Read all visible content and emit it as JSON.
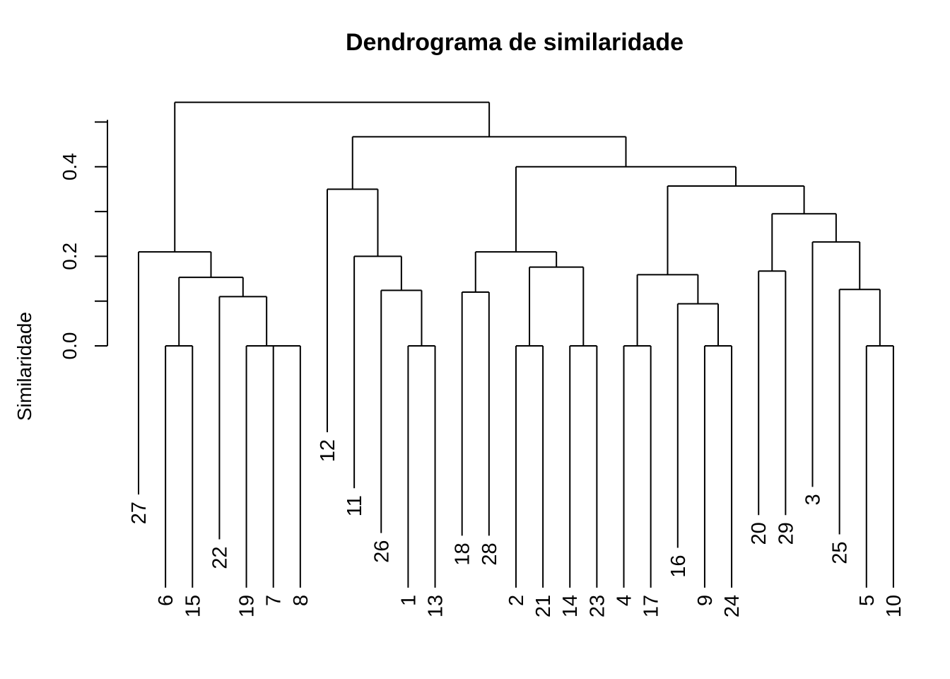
{
  "chart_data": {
    "type": "dendrogram",
    "title": "Dendrograma de similaridade",
    "ylabel": "Similaridade",
    "xlabel": "",
    "yticks": [
      0.0,
      0.1,
      0.2,
      0.3,
      0.4,
      0.5
    ],
    "ytick_labels": [
      "0.0",
      "",
      "0.2",
      "",
      "0.4",
      ""
    ],
    "leaf_order": [
      "27",
      "6",
      "15",
      "22",
      "19",
      "7",
      "8",
      "12",
      "11",
      "26",
      "1",
      "13",
      "18",
      "28",
      "2",
      "21",
      "14",
      "23",
      "4",
      "17",
      "16",
      "9",
      "24",
      "20",
      "29",
      "3",
      "25",
      "5",
      "10"
    ],
    "merges": [
      {
        "id": "A",
        "left": "6",
        "right": "15",
        "height": 0.0
      },
      {
        "id": "B",
        "left": "7",
        "right": "8",
        "height": 0.0
      },
      {
        "id": "C",
        "left": "19",
        "right": "B",
        "height": 0.0
      },
      {
        "id": "D",
        "left": "22",
        "right": "C",
        "height": 0.11
      },
      {
        "id": "E",
        "left": "A",
        "right": "D",
        "height": 0.153
      },
      {
        "id": "F",
        "left": "27",
        "right": "E",
        "height": 0.21
      },
      {
        "id": "G",
        "left": "1",
        "right": "13",
        "height": 0.0
      },
      {
        "id": "H",
        "left": "26",
        "right": "G",
        "height": 0.124
      },
      {
        "id": "I",
        "left": "11",
        "right": "H",
        "height": 0.2
      },
      {
        "id": "J",
        "left": "12",
        "right": "I",
        "height": 0.35
      },
      {
        "id": "K",
        "left": "18",
        "right": "28",
        "height": 0.12
      },
      {
        "id": "L",
        "left": "2",
        "right": "21",
        "height": 0.0
      },
      {
        "id": "M",
        "left": "14",
        "right": "23",
        "height": 0.0
      },
      {
        "id": "N",
        "left": "L",
        "right": "M",
        "height": 0.176
      },
      {
        "id": "O",
        "left": "K",
        "right": "N",
        "height": 0.21
      },
      {
        "id": "P",
        "left": "4",
        "right": "17",
        "height": 0.0
      },
      {
        "id": "Q",
        "left": "9",
        "right": "24",
        "height": 0.0
      },
      {
        "id": "R",
        "left": "16",
        "right": "Q",
        "height": 0.094
      },
      {
        "id": "S",
        "left": "P",
        "right": "R",
        "height": 0.159
      },
      {
        "id": "T",
        "left": "20",
        "right": "29",
        "height": 0.167
      },
      {
        "id": "U",
        "left": "5",
        "right": "10",
        "height": 0.0
      },
      {
        "id": "V",
        "left": "25",
        "right": "U",
        "height": 0.126
      },
      {
        "id": "W",
        "left": "3",
        "right": "V",
        "height": 0.232
      },
      {
        "id": "X",
        "left": "T",
        "right": "W",
        "height": 0.295
      },
      {
        "id": "Y",
        "left": "S",
        "right": "X",
        "height": 0.357
      },
      {
        "id": "Z",
        "left": "O",
        "right": "Y",
        "height": 0.4
      },
      {
        "id": "AA",
        "left": "J",
        "right": "Z",
        "height": 0.467
      },
      {
        "id": "AB",
        "left": "F",
        "right": "AA",
        "height": 0.544
      }
    ],
    "leaf_tips": {
      "27": -0.332,
      "6": -0.54,
      "15": -0.54,
      "22": -0.432,
      "19": -0.54,
      "7": -0.54,
      "8": -0.54,
      "12": -0.193,
      "11": -0.318,
      "26": -0.418,
      "1": -0.54,
      "13": -0.54,
      "18": -0.424,
      "28": -0.424,
      "2": -0.54,
      "21": -0.54,
      "14": -0.54,
      "23": -0.54,
      "4": -0.54,
      "17": -0.54,
      "16": -0.451,
      "9": -0.54,
      "24": -0.54,
      "20": -0.378,
      "29": -0.378,
      "3": -0.315,
      "25": -0.421,
      "5": -0.54,
      "10": -0.54
    }
  }
}
